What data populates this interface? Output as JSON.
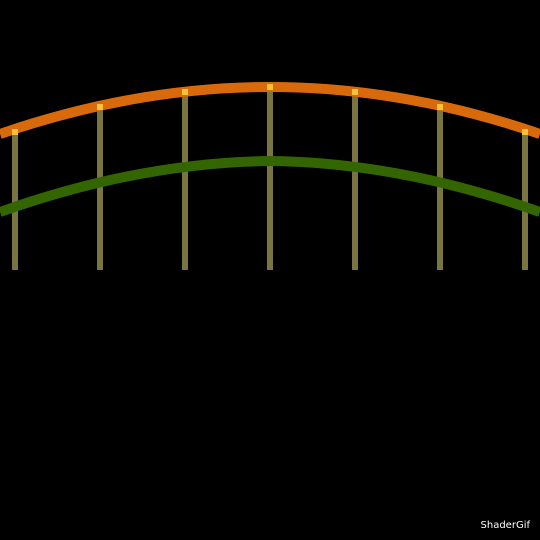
{
  "watermark": {
    "text": "ShaderGif"
  },
  "colors": {
    "background": "#000000",
    "upper_arc": "#d86a0c",
    "lower_arc": "#336600",
    "post": "#7a7440",
    "highlight": "#f6c23a",
    "watermark_text": "#ffffff"
  }
}
